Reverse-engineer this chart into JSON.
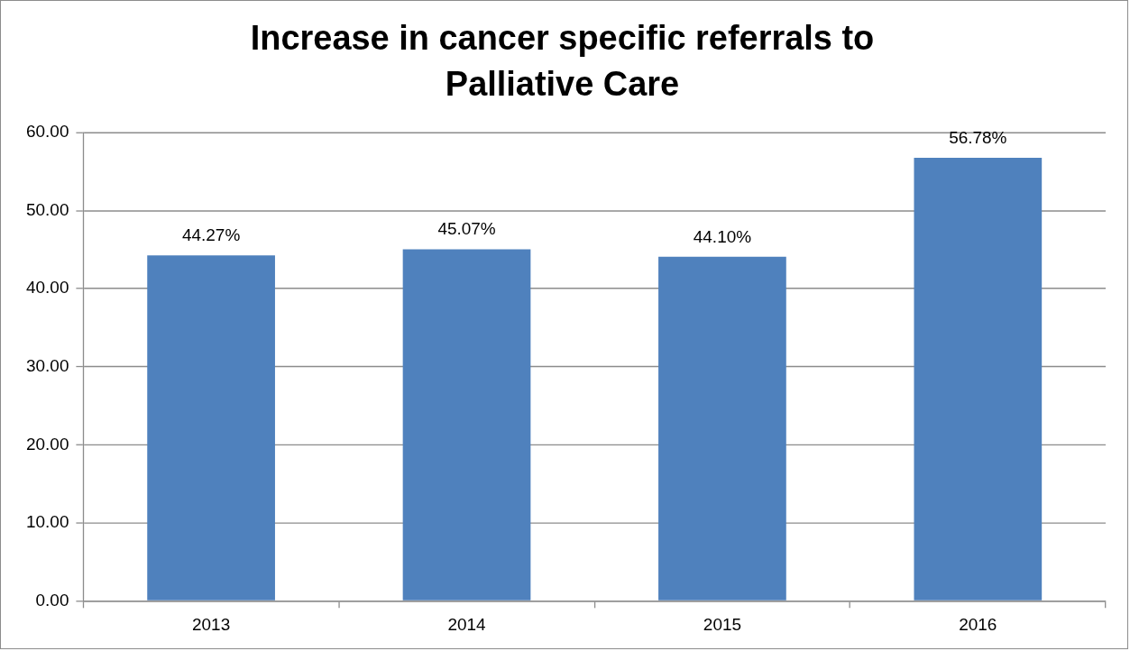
{
  "chart_data": {
    "type": "bar",
    "title": "Increase in cancer specific referrals to Palliative Care",
    "categories": [
      "2013",
      "2014",
      "2015",
      "2016"
    ],
    "values": [
      44.27,
      45.07,
      44.1,
      56.78
    ],
    "value_labels": [
      "44.27%",
      "45.07%",
      "44.10%",
      "56.78%"
    ],
    "color": "#4f81bd",
    "ylim": [
      0,
      60
    ],
    "yticks": [
      {
        "value": 0,
        "label": "0.00"
      },
      {
        "value": 10,
        "label": "10.00"
      },
      {
        "value": 20,
        "label": "20.00"
      },
      {
        "value": 30,
        "label": "30.00"
      },
      {
        "value": 40,
        "label": "40.00"
      },
      {
        "value": 50,
        "label": "50.00"
      },
      {
        "value": 60,
        "label": "60.00"
      }
    ],
    "grid": "y",
    "legend": false
  }
}
